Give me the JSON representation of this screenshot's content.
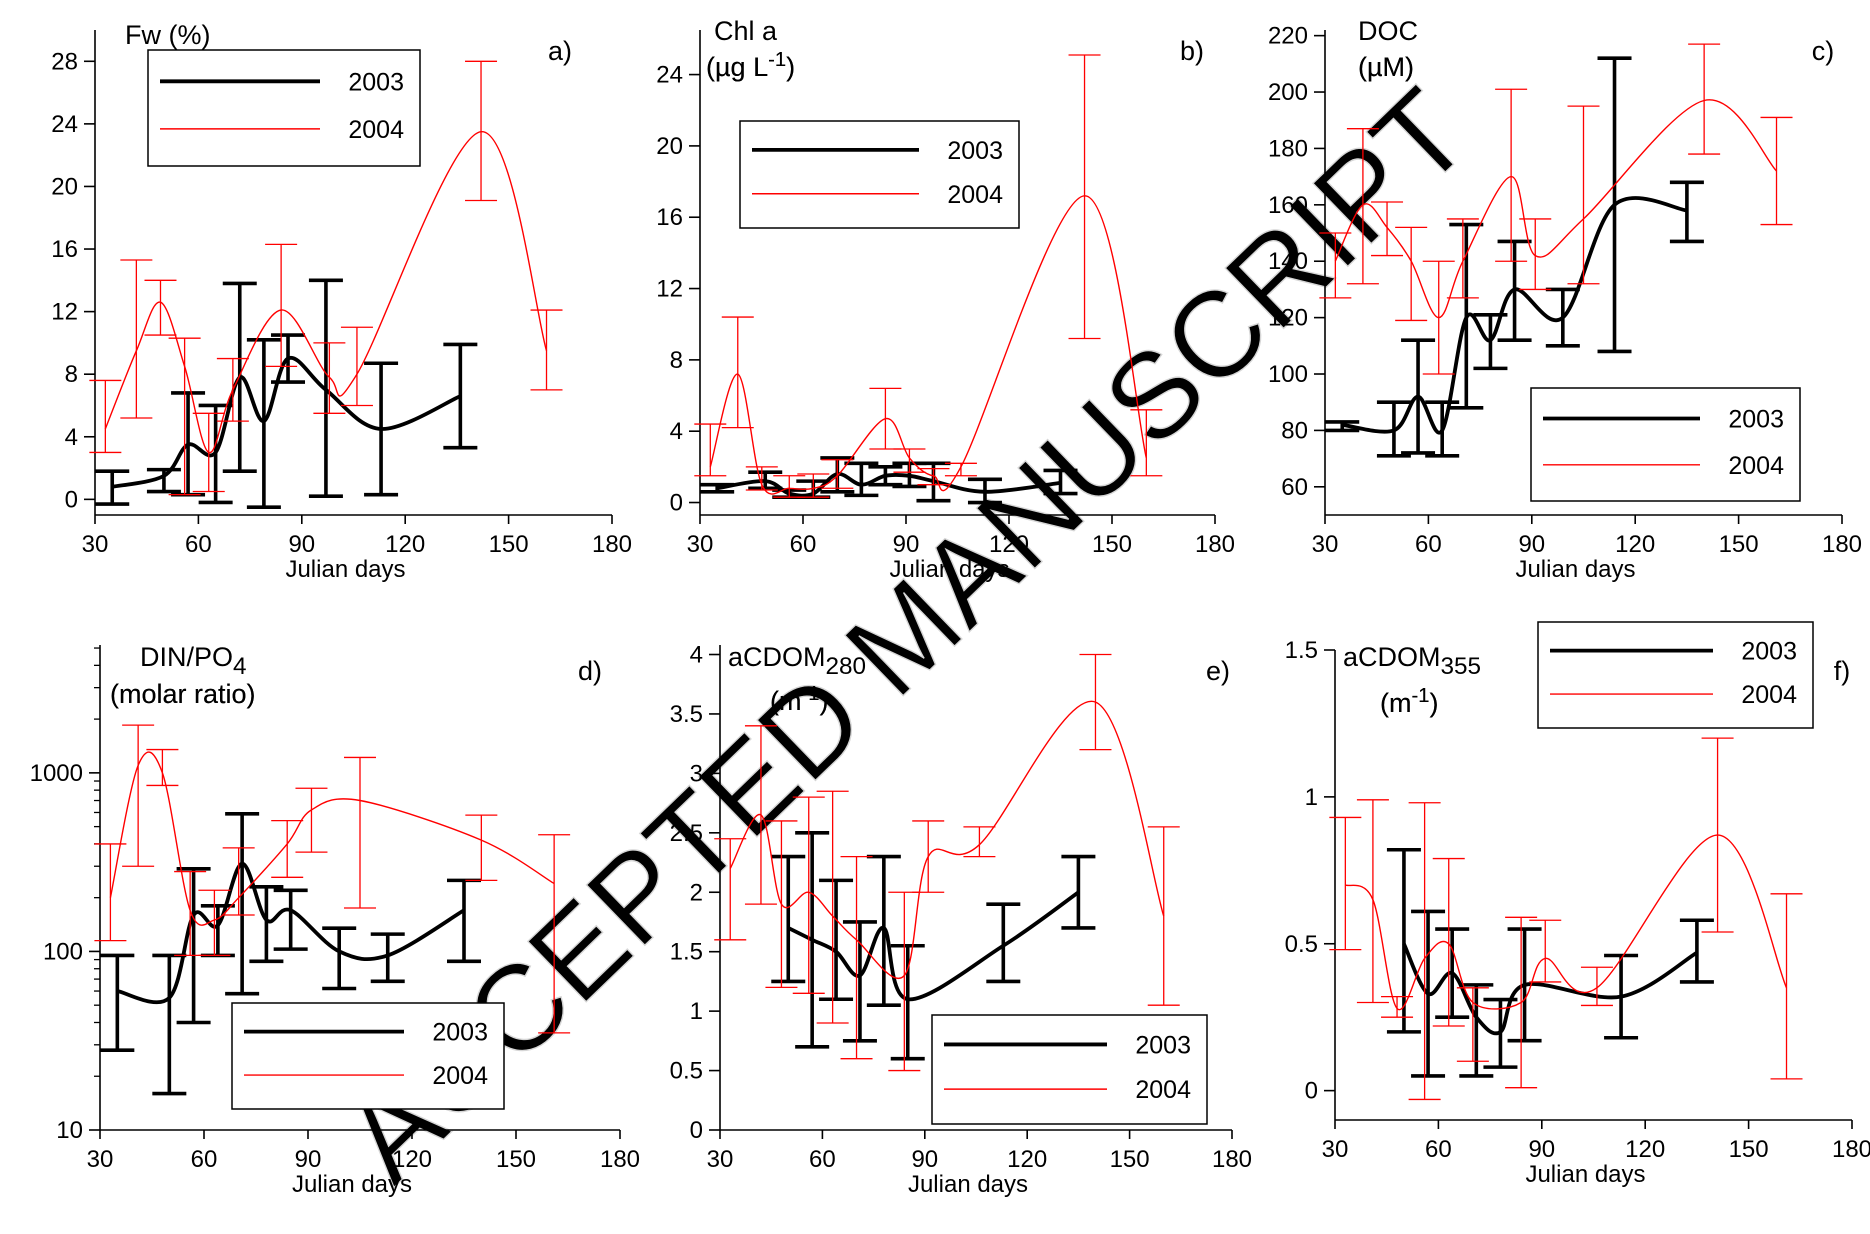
{
  "watermark": "ACCEPTED MANUSCRIPT",
  "legend_labels": [
    "2003",
    "2004"
  ],
  "colors": {
    "2003": "#000000",
    "2004": "#ff0000"
  },
  "chart_data": [
    {
      "type": "line",
      "panel": "a)",
      "title": "Fw (%)",
      "title_line2": "",
      "xlabel": "Julian days",
      "ylabel": "",
      "xlim": [
        30,
        180
      ],
      "ylim": [
        -1,
        30
      ],
      "xticks": [
        30,
        60,
        90,
        120,
        150,
        180
      ],
      "yticks": [
        0,
        4,
        8,
        12,
        16,
        20,
        24,
        28
      ],
      "ytick_labels": [
        "0",
        "4",
        "8",
        "12",
        "16",
        "20",
        "24",
        "28"
      ],
      "ylog": false,
      "legend_position": "top-left",
      "series": [
        {
          "name": "2003",
          "x": [
            35,
            50,
            57,
            65,
            72,
            79,
            86,
            97,
            113,
            136
          ],
          "y": [
            0.8,
            1.5,
            3.5,
            3.0,
            7.8,
            5.0,
            9.0,
            7.0,
            4.5,
            6.6
          ],
          "err_low": [
            -0.3,
            0.5,
            0.3,
            -0.2,
            1.8,
            -0.5,
            7.5,
            0.2,
            0.3,
            3.3
          ],
          "err_high": [
            1.8,
            1.9,
            6.8,
            6.0,
            13.8,
            10.2,
            10.5,
            14.0,
            8.7,
            9.9
          ]
        },
        {
          "name": "2004",
          "x": [
            33,
            42,
            49,
            56,
            63,
            70,
            84,
            98,
            106,
            142,
            161
          ],
          "y": [
            4.5,
            9.5,
            12.6,
            8.5,
            3.0,
            7.0,
            12.1,
            7.8,
            8.0,
            23.5,
            9.5
          ],
          "err_low": [
            3.0,
            5.2,
            10.5,
            0.3,
            0.5,
            5.0,
            8.5,
            5.5,
            6.0,
            19.1,
            7.0
          ],
          "err_high": [
            7.6,
            15.3,
            14.0,
            10.3,
            5.5,
            9.0,
            16.3,
            10.0,
            11.0,
            28.0,
            12.1
          ]
        }
      ]
    },
    {
      "type": "line",
      "panel": "b)",
      "title": "Chl a",
      "title_line2": "(µg L-1)",
      "xlabel": "Julian days",
      "ylabel": "",
      "xlim": [
        30,
        180
      ],
      "ylim": [
        -0.7,
        26.5
      ],
      "xticks": [
        30,
        60,
        90,
        120,
        150,
        180
      ],
      "yticks": [
        0,
        4,
        8,
        12,
        16,
        20,
        24
      ],
      "ytick_labels": [
        "0",
        "4",
        "8",
        "12",
        "16",
        "20",
        "24"
      ],
      "ylog": false,
      "legend_position": "top-left",
      "series": [
        {
          "name": "2003",
          "x": [
            35,
            49,
            56,
            63,
            70,
            77,
            84,
            91,
            98,
            113,
            135
          ],
          "y": [
            0.8,
            1.2,
            0.5,
            0.5,
            1.6,
            1.0,
            1.5,
            1.5,
            1.2,
            0.6,
            1.1
          ],
          "err_low": [
            0.6,
            0.8,
            0.3,
            0.3,
            0.6,
            0.4,
            1.0,
            0.9,
            0.1,
            0.0,
            0.5
          ],
          "err_high": [
            1.0,
            1.7,
            0.7,
            1.2,
            2.5,
            2.2,
            2.0,
            2.2,
            2.2,
            1.3,
            1.8
          ]
        },
        {
          "name": "2004",
          "x": [
            33,
            41,
            48,
            56,
            63,
            70,
            84,
            91,
            98,
            106,
            142,
            160
          ],
          "y": [
            2.0,
            7.2,
            1.0,
            0.8,
            0.8,
            1.5,
            4.7,
            2.5,
            1.5,
            2.0,
            17.2,
            2.5
          ],
          "err_low": [
            1.5,
            4.2,
            0.7,
            0.3,
            0.3,
            0.8,
            3.0,
            1.7,
            1.0,
            1.5,
            9.2,
            1.5
          ],
          "err_high": [
            4.4,
            10.4,
            2.0,
            1.5,
            1.6,
            2.4,
            6.4,
            3.0,
            1.9,
            2.2,
            25.1,
            5.2
          ]
        }
      ]
    },
    {
      "type": "line",
      "panel": "c)",
      "title": "DOC",
      "title_line2": "(µM)",
      "xlabel": "Julian days",
      "ylabel": "",
      "xlim": [
        30,
        180
      ],
      "ylim": [
        50,
        222
      ],
      "xticks": [
        30,
        60,
        90,
        120,
        150,
        180
      ],
      "yticks": [
        60,
        80,
        100,
        120,
        140,
        160,
        180,
        200,
        220
      ],
      "ytick_labels": [
        "60",
        "80",
        "100",
        "120",
        "140",
        "160",
        "180",
        "200",
        "220"
      ],
      "ylog": false,
      "legend_position": "bottom-right",
      "series": [
        {
          "name": "2003",
          "x": [
            35,
            50,
            57,
            64,
            71,
            78,
            85,
            99,
            114,
            135
          ],
          "y": [
            82,
            80,
            92,
            80,
            120,
            112,
            130,
            120,
            160,
            158
          ],
          "err_low": [
            80,
            71,
            72,
            71,
            88,
            102,
            112,
            110,
            108,
            147
          ],
          "err_high": [
            83,
            90,
            112,
            90,
            153,
            121,
            147,
            130,
            212,
            168
          ]
        },
        {
          "name": "2004",
          "x": [
            33,
            41,
            48,
            55,
            63,
            70,
            84,
            91,
            105,
            140,
            161
          ],
          "y": [
            140,
            160,
            152,
            140,
            120,
            140,
            170,
            142,
            155,
            197,
            172
          ],
          "err_low": [
            127,
            132,
            142,
            119,
            100,
            127,
            140,
            130,
            132,
            178,
            153
          ],
          "err_high": [
            150,
            187,
            161,
            152,
            140,
            155,
            201,
            155,
            195,
            217,
            191
          ]
        }
      ]
    },
    {
      "type": "line",
      "panel": "d)",
      "title": "DIN/PO4",
      "title_line2": "(molar ratio)",
      "xlabel": "Julian days",
      "ylabel": "",
      "xlim": [
        30,
        180
      ],
      "ylim": [
        10,
        5200
      ],
      "xticks": [
        30,
        60,
        90,
        120,
        150,
        180
      ],
      "yticks": [
        10,
        100,
        1000
      ],
      "ytick_labels": [
        "10",
        "100",
        "1000"
      ],
      "ylog": true,
      "legend_position": "bottom-right",
      "series": [
        {
          "name": "2003",
          "x": [
            35,
            50,
            57,
            64,
            71,
            78,
            85,
            99,
            113,
            135
          ],
          "y": [
            60,
            55,
            160,
            140,
            310,
            150,
            170,
            100,
            95,
            170
          ],
          "err_low": [
            28,
            16,
            40,
            95,
            58,
            88,
            103,
            62,
            68,
            88
          ],
          "err_high": [
            95,
            95,
            290,
            180,
            590,
            230,
            220,
            135,
            125,
            250
          ]
        },
        {
          "name": "2004",
          "x": [
            33,
            41,
            48,
            56,
            63,
            70,
            84,
            91,
            105,
            140,
            161
          ],
          "y": [
            200,
            1100,
            1000,
            170,
            150,
            200,
            400,
            620,
            700,
            420,
            240
          ],
          "err_low": [
            115,
            300,
            850,
            95,
            95,
            160,
            260,
            360,
            175,
            250,
            35
          ],
          "err_high": [
            400,
            1850,
            1350,
            280,
            220,
            380,
            540,
            820,
            1220,
            580,
            450
          ]
        }
      ]
    },
    {
      "type": "line",
      "panel": "e)",
      "title": "aCDOM280",
      "title_line2": "(m-1)",
      "xlabel": "Julian days",
      "ylabel": "",
      "xlim": [
        30,
        180
      ],
      "ylim": [
        0,
        4.08
      ],
      "xticks": [
        30,
        60,
        90,
        120,
        150,
        180
      ],
      "yticks": [
        0,
        0.5,
        1,
        1.5,
        2,
        2.5,
        3,
        3.5,
        4
      ],
      "ytick_labels": [
        "0",
        "0.5",
        "1",
        "1.5",
        "2",
        "2.5",
        "3",
        "3.5",
        "4"
      ],
      "ylog": false,
      "legend_position": "bottom-right",
      "series": [
        {
          "name": "2003",
          "x": [
            50,
            57,
            64,
            71,
            78,
            85,
            113,
            135
          ],
          "y": [
            1.7,
            1.6,
            1.5,
            1.3,
            1.7,
            1.1,
            1.55,
            2.0
          ],
          "err_low": [
            1.25,
            0.7,
            1.1,
            0.75,
            1.05,
            0.6,
            1.25,
            1.7
          ],
          "err_high": [
            2.3,
            2.5,
            2.1,
            1.75,
            2.3,
            1.55,
            1.9,
            2.3
          ]
        },
        {
          "name": "2004",
          "x": [
            33,
            42,
            48,
            56,
            63,
            70,
            84,
            91,
            106,
            140,
            160
          ],
          "y": [
            2.2,
            2.65,
            1.9,
            2.0,
            1.8,
            1.6,
            1.3,
            2.3,
            2.4,
            3.6,
            1.8
          ],
          "err_low": [
            1.6,
            1.9,
            1.2,
            1.15,
            0.9,
            0.6,
            0.5,
            2.0,
            2.3,
            3.2,
            1.05
          ],
          "err_high": [
            2.45,
            3.4,
            2.6,
            2.8,
            2.85,
            2.3,
            2.0,
            2.6,
            2.55,
            4.0,
            2.55
          ]
        }
      ]
    },
    {
      "type": "line",
      "panel": "f)",
      "title": "aCDOM355",
      "title_line2": "(m-1)",
      "xlabel": "Julian days",
      "ylabel": "",
      "xlim": [
        30,
        180
      ],
      "ylim": [
        -0.1,
        1.5
      ],
      "xticks": [
        30,
        60,
        90,
        120,
        150,
        180
      ],
      "yticks": [
        0,
        0.5,
        1,
        1.5
      ],
      "ytick_labels": [
        "0",
        "0.5",
        "1",
        "1.5"
      ],
      "ylog": false,
      "legend_position": "top-right",
      "series": [
        {
          "name": "2003",
          "x": [
            50,
            57,
            64,
            71,
            78,
            85,
            113,
            135
          ],
          "y": [
            0.5,
            0.33,
            0.4,
            0.25,
            0.2,
            0.36,
            0.32,
            0.47
          ],
          "err_low": [
            0.2,
            0.05,
            0.25,
            0.05,
            0.08,
            0.17,
            0.18,
            0.37
          ],
          "err_high": [
            0.82,
            0.61,
            0.55,
            0.36,
            0.31,
            0.55,
            0.46,
            0.58
          ]
        },
        {
          "name": "2004",
          "x": [
            33,
            41,
            48,
            56,
            63,
            70,
            84,
            91,
            106,
            141,
            161
          ],
          "y": [
            0.7,
            0.65,
            0.28,
            0.45,
            0.5,
            0.3,
            0.3,
            0.45,
            0.35,
            0.87,
            0.35
          ],
          "err_low": [
            0.48,
            0.3,
            0.25,
            -0.03,
            0.22,
            0.1,
            0.01,
            0.37,
            0.29,
            0.54,
            0.04
          ],
          "err_high": [
            0.93,
            0.99,
            0.32,
            0.98,
            0.79,
            0.35,
            0.59,
            0.58,
            0.42,
            1.2,
            0.67
          ]
        }
      ]
    }
  ]
}
